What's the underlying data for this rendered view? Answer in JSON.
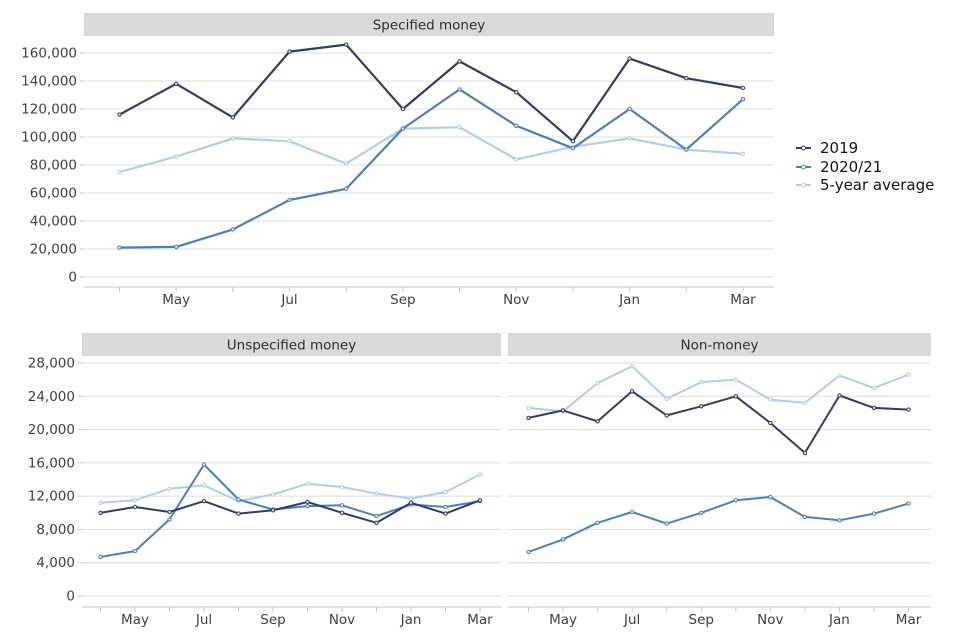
{
  "colors": {
    "series_2019": "#2e3d6e",
    "series_2020_21": "#4c7ec0",
    "series_5yr": "#aecfeb",
    "grid": "#dcdcdc",
    "axis_line": "#c6c6c6",
    "strip_bg": "#d9d9d9",
    "strip_text": "#2e2e2e",
    "tick_text": "#3f3f3f",
    "background": "#ffffff"
  },
  "legend": {
    "items": [
      {
        "label": "2019",
        "color": "#2e3d6e"
      },
      {
        "label": "2020/21",
        "color": "#4c7ec0"
      },
      {
        "label": "5-year average",
        "color": "#aecfeb"
      }
    ]
  },
  "chart_data": [
    {
      "type": "line",
      "title": "Specified money",
      "x": [
        "Apr",
        "May",
        "Jun",
        "Jul",
        "Aug",
        "Sep",
        "Oct",
        "Nov",
        "Dec",
        "Jan",
        "Feb",
        "Mar"
      ],
      "x_tick_labels": [
        "May",
        "Jul",
        "Sep",
        "Nov",
        "Jan",
        "Mar"
      ],
      "ylim": [
        0,
        170000
      ],
      "yticks": [
        0,
        20000,
        40000,
        60000,
        80000,
        100000,
        120000,
        140000,
        160000
      ],
      "ytick_labels": [
        "0",
        "20,000",
        "40,000",
        "60,000",
        "80,000",
        "100,000",
        "120,000",
        "140,000",
        "160,000"
      ],
      "grid": true,
      "legend_position": "right",
      "series": [
        {
          "name": "2019",
          "color": "#2e3d6e",
          "values": [
            116000,
            138000,
            114000,
            161000,
            166000,
            120000,
            154000,
            132000,
            97000,
            156000,
            142000,
            135000
          ]
        },
        {
          "name": "2020/21",
          "color": "#4c7ec0",
          "values": [
            21000,
            21500,
            34000,
            55000,
            63000,
            106000,
            134000,
            108000,
            92000,
            120000,
            91000,
            127000
          ]
        },
        {
          "name": "5-year average",
          "color": "#aecfeb",
          "values": [
            75000,
            86000,
            99000,
            97000,
            81000,
            106000,
            107000,
            84000,
            93000,
            99000,
            91000,
            88000
          ]
        }
      ]
    },
    {
      "type": "line",
      "title": "Unspecified money",
      "x": [
        "Apr",
        "May",
        "Jun",
        "Jul",
        "Aug",
        "Sep",
        "Oct",
        "Nov",
        "Dec",
        "Jan",
        "Feb",
        "Mar"
      ],
      "x_tick_labels": [
        "May",
        "Jul",
        "Sep",
        "Nov",
        "Jan",
        "Mar"
      ],
      "ylim": [
        0,
        29000
      ],
      "yticks": [
        0,
        4000,
        8000,
        12000,
        16000,
        20000,
        24000,
        28000
      ],
      "ytick_labels": [
        "0",
        "4,000",
        "8,000",
        "12,000",
        "16,000",
        "20,000",
        "24,000",
        "28,000"
      ],
      "grid": true,
      "series": [
        {
          "name": "2019",
          "color": "#2e3d6e",
          "values": [
            10000,
            10700,
            10100,
            11400,
            9900,
            10300,
            11300,
            10000,
            8800,
            11200,
            9900,
            11500
          ]
        },
        {
          "name": "2020/21",
          "color": "#4c7ec0",
          "values": [
            4700,
            5400,
            9200,
            15800,
            11600,
            10400,
            10800,
            10900,
            9600,
            11000,
            10700,
            11400
          ]
        },
        {
          "name": "5-year average",
          "color": "#aecfeb",
          "values": [
            11200,
            11500,
            12900,
            13300,
            11400,
            12200,
            13500,
            13100,
            12300,
            11700,
            12500,
            14600
          ]
        }
      ]
    },
    {
      "type": "line",
      "title": "Non-money",
      "x": [
        "Apr",
        "May",
        "Jun",
        "Jul",
        "Aug",
        "Sep",
        "Oct",
        "Nov",
        "Dec",
        "Jan",
        "Feb",
        "Mar"
      ],
      "x_tick_labels": [
        "May",
        "Jul",
        "Sep",
        "Nov",
        "Jan",
        "Mar"
      ],
      "ylim": [
        0,
        29000
      ],
      "yticks": [
        0,
        4000,
        8000,
        12000,
        16000,
        20000,
        24000,
        28000
      ],
      "ytick_labels": [],
      "grid": true,
      "series": [
        {
          "name": "2019",
          "color": "#2e3d6e",
          "values": [
            21400,
            22300,
            21000,
            24600,
            21700,
            22800,
            24000,
            20800,
            17200,
            24100,
            22600,
            22400
          ]
        },
        {
          "name": "2020/21",
          "color": "#4c7ec0",
          "values": [
            5300,
            6800,
            8800,
            10100,
            8700,
            10000,
            11500,
            11900,
            9500,
            9100,
            9900,
            11100
          ]
        },
        {
          "name": "5-year average",
          "color": "#aecfeb",
          "values": [
            22600,
            22200,
            25600,
            27600,
            23700,
            25700,
            26000,
            23600,
            23200,
            26500,
            25000,
            26600
          ]
        }
      ]
    }
  ]
}
